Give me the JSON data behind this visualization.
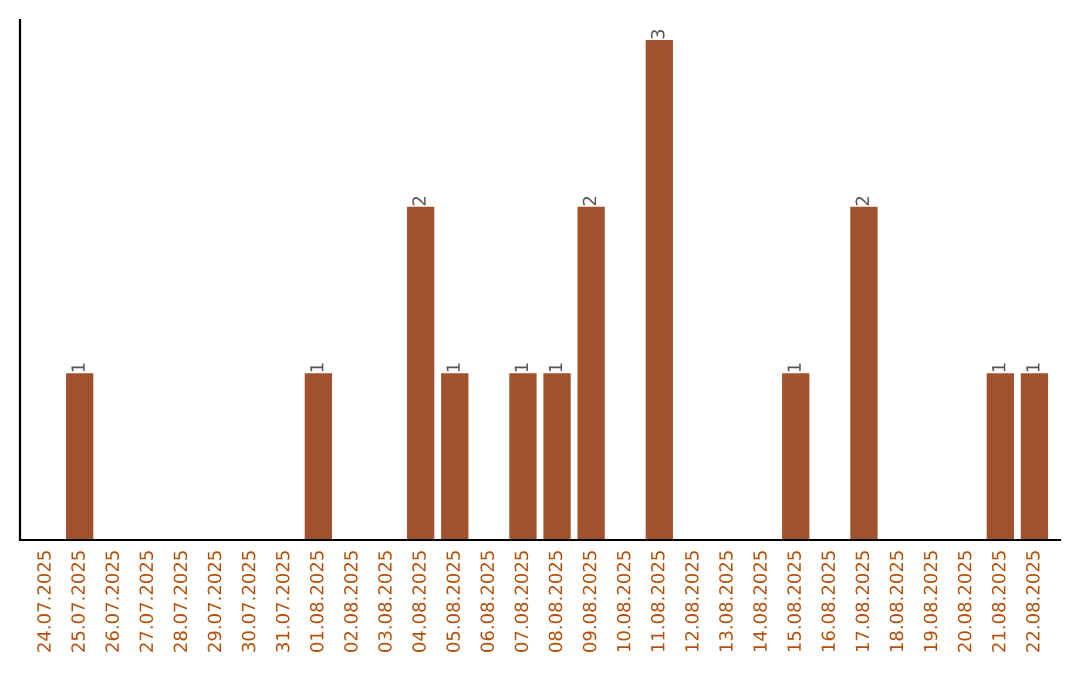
{
  "chart_data": {
    "type": "bar",
    "categories": [
      "24.07.2025",
      "25.07.2025",
      "26.07.2025",
      "27.07.2025",
      "28.07.2025",
      "29.07.2025",
      "30.07.2025",
      "31.07.2025",
      "01.08.2025",
      "02.08.2025",
      "03.08.2025",
      "04.08.2025",
      "05.08.2025",
      "06.08.2025",
      "07.08.2025",
      "08.08.2025",
      "09.08.2025",
      "10.08.2025",
      "11.08.2025",
      "12.08.2025",
      "13.08.2025",
      "14.08.2025",
      "15.08.2025",
      "16.08.2025",
      "17.08.2025",
      "18.08.2025",
      "19.08.2025",
      "20.08.2025",
      "21.08.2025",
      "22.08.2025"
    ],
    "values": [
      0,
      1,
      0,
      0,
      0,
      0,
      0,
      0,
      1,
      0,
      0,
      2,
      1,
      0,
      1,
      1,
      2,
      0,
      3,
      0,
      0,
      0,
      1,
      0,
      2,
      0,
      0,
      0,
      1,
      1
    ],
    "value_labels": [
      null,
      "1",
      null,
      null,
      null,
      null,
      null,
      null,
      "1",
      null,
      null,
      "2",
      "1",
      null,
      "1",
      "1",
      "2",
      null,
      "3",
      null,
      null,
      null,
      "1",
      null,
      "2",
      null,
      null,
      null,
      "1",
      "1"
    ],
    "color": "#a0522d",
    "tick_labels": "x",
    "grid": false,
    "legend": false
  }
}
